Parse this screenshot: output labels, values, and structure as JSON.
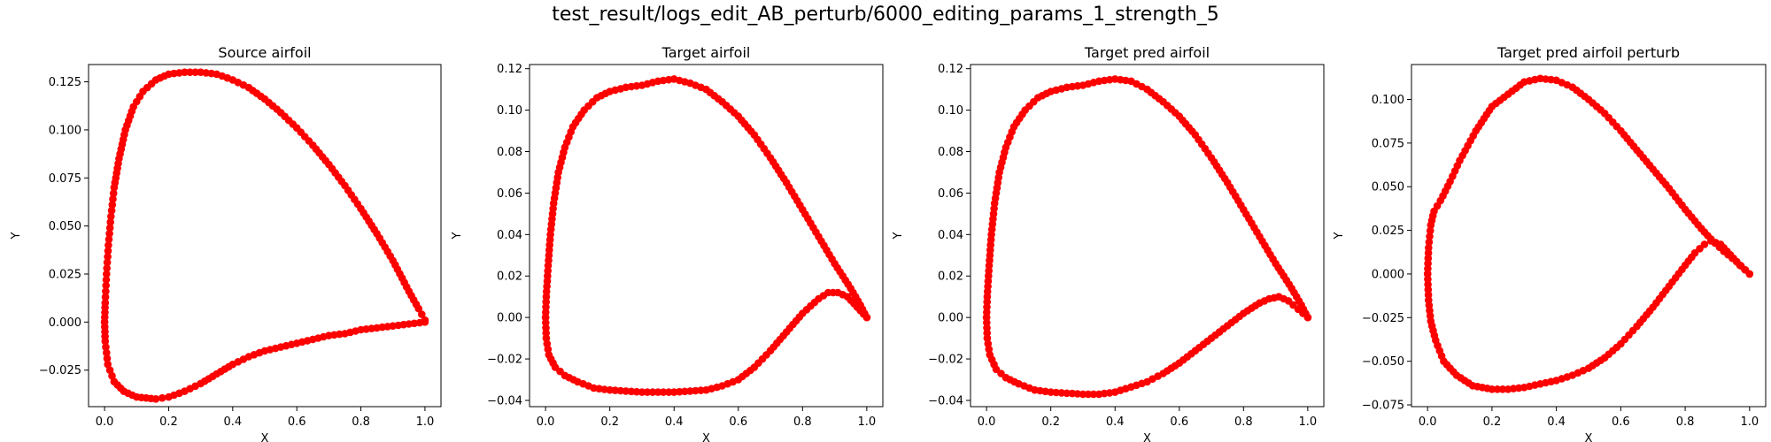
{
  "figure": {
    "suptitle": "test_result/logs_edit_AB_perturb/6000_editing_params_1_strength_5"
  },
  "marker_color": "#ff0000",
  "chart_data": [
    {
      "type": "scatter",
      "title": "Source airfoil",
      "xlabel": "X",
      "ylabel": "Y",
      "xlim": [
        -0.05,
        1.05
      ],
      "ylim": [
        -0.044,
        0.134
      ],
      "xticks": [
        "0.0",
        "0.2",
        "0.4",
        "0.6",
        "0.8",
        "1.0"
      ],
      "xtick_values": [
        0,
        0.2,
        0.4,
        0.6,
        0.8,
        1.0
      ],
      "yticks": [
        "−0.025",
        "0.000",
        "0.025",
        "0.050",
        "0.075",
        "0.100",
        "0.125"
      ],
      "ytick_values": [
        -0.025,
        0,
        0.025,
        0.05,
        0.075,
        0.1,
        0.125
      ],
      "upper": [
        [
          0,
          0
        ],
        [
          0.002,
          0.01
        ],
        [
          0.006,
          0.025
        ],
        [
          0.012,
          0.04
        ],
        [
          0.02,
          0.055
        ],
        [
          0.03,
          0.07
        ],
        [
          0.045,
          0.085
        ],
        [
          0.065,
          0.1
        ],
        [
          0.09,
          0.112
        ],
        [
          0.12,
          0.12
        ],
        [
          0.16,
          0.126
        ],
        [
          0.2,
          0.129
        ],
        [
          0.25,
          0.13
        ],
        [
          0.3,
          0.13
        ],
        [
          0.35,
          0.129
        ],
        [
          0.4,
          0.126
        ],
        [
          0.45,
          0.122
        ],
        [
          0.5,
          0.116
        ],
        [
          0.55,
          0.109
        ],
        [
          0.6,
          0.101
        ],
        [
          0.65,
          0.092
        ],
        [
          0.7,
          0.082
        ],
        [
          0.75,
          0.071
        ],
        [
          0.8,
          0.059
        ],
        [
          0.85,
          0.046
        ],
        [
          0.9,
          0.032
        ],
        [
          0.95,
          0.016
        ],
        [
          0.98,
          0.007
        ],
        [
          1.0,
          0.001
        ]
      ],
      "lower": [
        [
          0,
          0
        ],
        [
          0.002,
          -0.01
        ],
        [
          0.01,
          -0.022
        ],
        [
          0.03,
          -0.031
        ],
        [
          0.06,
          -0.036
        ],
        [
          0.1,
          -0.039
        ],
        [
          0.16,
          -0.04
        ],
        [
          0.2,
          -0.039
        ],
        [
          0.25,
          -0.036
        ],
        [
          0.3,
          -0.032
        ],
        [
          0.35,
          -0.027
        ],
        [
          0.4,
          -0.022
        ],
        [
          0.45,
          -0.018
        ],
        [
          0.5,
          -0.015
        ],
        [
          0.55,
          -0.013
        ],
        [
          0.6,
          -0.011
        ],
        [
          0.65,
          -0.009
        ],
        [
          0.7,
          -0.007
        ],
        [
          0.75,
          -0.006
        ],
        [
          0.8,
          -0.004
        ],
        [
          0.85,
          -0.003
        ],
        [
          0.9,
          -0.002
        ],
        [
          0.95,
          -0.001
        ],
        [
          1.0,
          0
        ]
      ]
    },
    {
      "type": "scatter",
      "title": "Target airfoil",
      "xlabel": "X",
      "ylabel": "Y",
      "xlim": [
        -0.05,
        1.05
      ],
      "ylim": [
        -0.043,
        0.122
      ],
      "xticks": [
        "0.0",
        "0.2",
        "0.4",
        "0.6",
        "0.8",
        "1.0"
      ],
      "xtick_values": [
        0,
        0.2,
        0.4,
        0.6,
        0.8,
        1.0
      ],
      "yticks": [
        "−0.04",
        "−0.02",
        "0.00",
        "0.02",
        "0.04",
        "0.06",
        "0.08",
        "0.10",
        "0.12"
      ],
      "ytick_values": [
        -0.04,
        -0.02,
        0,
        0.02,
        0.04,
        0.06,
        0.08,
        0.1,
        0.12
      ],
      "upper": [
        [
          0,
          0
        ],
        [
          0.002,
          0.01
        ],
        [
          0.008,
          0.025
        ],
        [
          0.015,
          0.04
        ],
        [
          0.025,
          0.055
        ],
        [
          0.04,
          0.07
        ],
        [
          0.06,
          0.082
        ],
        [
          0.085,
          0.092
        ],
        [
          0.12,
          0.1
        ],
        [
          0.16,
          0.106
        ],
        [
          0.2,
          0.109
        ],
        [
          0.25,
          0.111
        ],
        [
          0.3,
          0.112
        ],
        [
          0.35,
          0.114
        ],
        [
          0.4,
          0.115
        ],
        [
          0.45,
          0.113
        ],
        [
          0.5,
          0.11
        ],
        [
          0.55,
          0.104
        ],
        [
          0.6,
          0.097
        ],
        [
          0.65,
          0.088
        ],
        [
          0.7,
          0.077
        ],
        [
          0.75,
          0.065
        ],
        [
          0.8,
          0.052
        ],
        [
          0.85,
          0.039
        ],
        [
          0.9,
          0.026
        ],
        [
          0.95,
          0.014
        ],
        [
          0.98,
          0.006
        ],
        [
          1.0,
          0.0
        ]
      ],
      "lower": [
        [
          0,
          0
        ],
        [
          0.002,
          -0.01
        ],
        [
          0.01,
          -0.018
        ],
        [
          0.03,
          -0.024
        ],
        [
          0.06,
          -0.028
        ],
        [
          0.1,
          -0.031
        ],
        [
          0.15,
          -0.034
        ],
        [
          0.2,
          -0.035
        ],
        [
          0.3,
          -0.036
        ],
        [
          0.4,
          -0.036
        ],
        [
          0.5,
          -0.035
        ],
        [
          0.55,
          -0.033
        ],
        [
          0.6,
          -0.03
        ],
        [
          0.65,
          -0.024
        ],
        [
          0.7,
          -0.016
        ],
        [
          0.75,
          -0.007
        ],
        [
          0.8,
          0.002
        ],
        [
          0.85,
          0.009
        ],
        [
          0.88,
          0.012
        ],
        [
          0.91,
          0.012
        ],
        [
          0.94,
          0.01
        ],
        [
          0.97,
          0.005
        ],
        [
          1.0,
          0.0
        ]
      ]
    },
    {
      "type": "scatter",
      "title": "Target pred airfoil",
      "xlabel": "X",
      "ylabel": "Y",
      "xlim": [
        -0.05,
        1.05
      ],
      "ylim": [
        -0.043,
        0.122
      ],
      "xticks": [
        "0.0",
        "0.2",
        "0.4",
        "0.6",
        "0.8",
        "1.0"
      ],
      "xtick_values": [
        0,
        0.2,
        0.4,
        0.6,
        0.8,
        1.0
      ],
      "yticks": [
        "−0.04",
        "−0.02",
        "0.00",
        "0.02",
        "0.04",
        "0.06",
        "0.08",
        "0.10",
        "0.12"
      ],
      "ytick_values": [
        -0.04,
        -0.02,
        0,
        0.02,
        0.04,
        0.06,
        0.08,
        0.1,
        0.12
      ],
      "upper": [
        [
          0,
          0
        ],
        [
          0.002,
          0.01
        ],
        [
          0.008,
          0.025
        ],
        [
          0.015,
          0.04
        ],
        [
          0.025,
          0.055
        ],
        [
          0.04,
          0.07
        ],
        [
          0.06,
          0.082
        ],
        [
          0.085,
          0.092
        ],
        [
          0.12,
          0.1
        ],
        [
          0.16,
          0.106
        ],
        [
          0.2,
          0.109
        ],
        [
          0.25,
          0.111
        ],
        [
          0.3,
          0.112
        ],
        [
          0.35,
          0.114
        ],
        [
          0.4,
          0.115
        ],
        [
          0.45,
          0.114
        ],
        [
          0.5,
          0.11
        ],
        [
          0.55,
          0.104
        ],
        [
          0.6,
          0.097
        ],
        [
          0.65,
          0.088
        ],
        [
          0.7,
          0.077
        ],
        [
          0.75,
          0.065
        ],
        [
          0.8,
          0.052
        ],
        [
          0.85,
          0.039
        ],
        [
          0.9,
          0.026
        ],
        [
          0.95,
          0.014
        ],
        [
          0.98,
          0.006
        ],
        [
          1.0,
          0.0
        ]
      ],
      "lower": [
        [
          0,
          0
        ],
        [
          0.002,
          -0.01
        ],
        [
          0.01,
          -0.018
        ],
        [
          0.03,
          -0.025
        ],
        [
          0.06,
          -0.029
        ],
        [
          0.1,
          -0.032
        ],
        [
          0.15,
          -0.035
        ],
        [
          0.2,
          -0.036
        ],
        [
          0.3,
          -0.037
        ],
        [
          0.35,
          -0.037
        ],
        [
          0.4,
          -0.036
        ],
        [
          0.5,
          -0.031
        ],
        [
          0.55,
          -0.027
        ],
        [
          0.6,
          -0.022
        ],
        [
          0.65,
          -0.016
        ],
        [
          0.7,
          -0.01
        ],
        [
          0.75,
          -0.004
        ],
        [
          0.8,
          0.002
        ],
        [
          0.85,
          0.007
        ],
        [
          0.88,
          0.009
        ],
        [
          0.91,
          0.01
        ],
        [
          0.94,
          0.008
        ],
        [
          0.97,
          0.004
        ],
        [
          1.0,
          0.0
        ]
      ]
    },
    {
      "type": "scatter",
      "title": "Target pred airfoil perturb",
      "xlabel": "X",
      "ylabel": "Y",
      "xlim": [
        -0.05,
        1.05
      ],
      "ylim": [
        -0.076,
        0.12
      ],
      "xticks": [
        "0.0",
        "0.2",
        "0.4",
        "0.6",
        "0.8",
        "1.0"
      ],
      "xtick_values": [
        0,
        0.2,
        0.4,
        0.6,
        0.8,
        1.0
      ],
      "yticks": [
        "−0.075",
        "−0.050",
        "−0.025",
        "0.000",
        "0.025",
        "0.050",
        "0.075",
        "0.100"
      ],
      "ytick_values": [
        -0.075,
        -0.05,
        -0.025,
        0,
        0.025,
        0.05,
        0.075,
        0.1
      ],
      "upper": [
        [
          0,
          0
        ],
        [
          0.003,
          0.015
        ],
        [
          0.01,
          0.028
        ],
        [
          0.02,
          0.036
        ],
        [
          0.04,
          0.042
        ],
        [
          0.07,
          0.053
        ],
        [
          0.1,
          0.065
        ],
        [
          0.15,
          0.082
        ],
        [
          0.2,
          0.096
        ],
        [
          0.25,
          0.103
        ],
        [
          0.3,
          0.11
        ],
        [
          0.35,
          0.112
        ],
        [
          0.4,
          0.111
        ],
        [
          0.45,
          0.107
        ],
        [
          0.5,
          0.1
        ],
        [
          0.55,
          0.092
        ],
        [
          0.6,
          0.082
        ],
        [
          0.65,
          0.071
        ],
        [
          0.7,
          0.06
        ],
        [
          0.75,
          0.049
        ],
        [
          0.8,
          0.037
        ],
        [
          0.85,
          0.026
        ],
        [
          0.88,
          0.02
        ],
        [
          0.92,
          0.013
        ],
        [
          0.96,
          0.007
        ],
        [
          1.0,
          0.0
        ]
      ],
      "lower": [
        [
          0,
          0
        ],
        [
          0.003,
          -0.015
        ],
        [
          0.01,
          -0.027
        ],
        [
          0.025,
          -0.038
        ],
        [
          0.05,
          -0.05
        ],
        [
          0.09,
          -0.058
        ],
        [
          0.14,
          -0.064
        ],
        [
          0.2,
          -0.066
        ],
        [
          0.25,
          -0.066
        ],
        [
          0.3,
          -0.065
        ],
        [
          0.35,
          -0.063
        ],
        [
          0.4,
          -0.061
        ],
        [
          0.45,
          -0.058
        ],
        [
          0.5,
          -0.054
        ],
        [
          0.55,
          -0.048
        ],
        [
          0.6,
          -0.04
        ],
        [
          0.65,
          -0.03
        ],
        [
          0.7,
          -0.019
        ],
        [
          0.75,
          -0.007
        ],
        [
          0.8,
          0.005
        ],
        [
          0.83,
          0.012
        ],
        [
          0.86,
          0.017
        ],
        [
          0.88,
          0.019
        ],
        [
          0.91,
          0.017
        ],
        [
          0.94,
          0.011
        ],
        [
          0.97,
          0.005
        ],
        [
          1.0,
          0.0
        ]
      ]
    }
  ]
}
